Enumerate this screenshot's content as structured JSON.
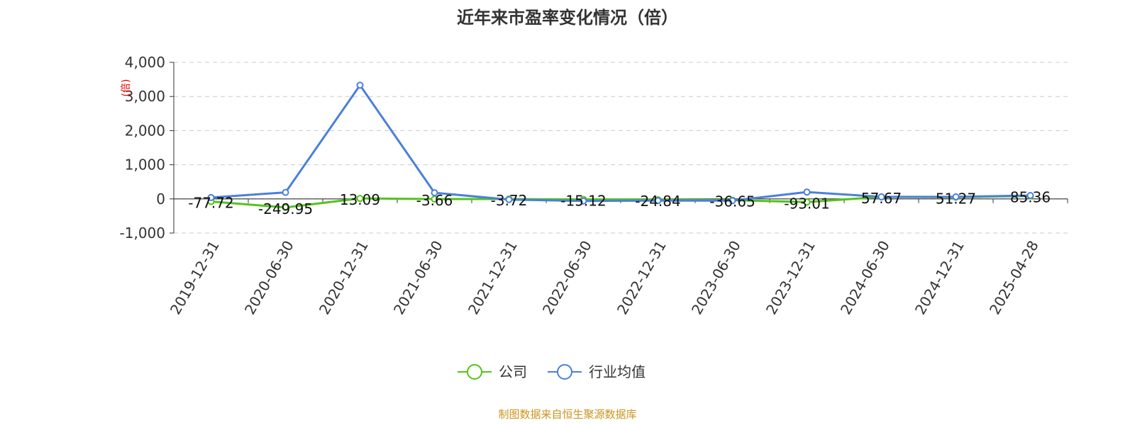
{
  "chart_data": {
    "type": "line",
    "title": "近年来市盈率变化情况（倍）",
    "unit_label": "(倍)",
    "categories": [
      "2019-12-31",
      "2020-06-30",
      "2020-12-31",
      "2021-06-30",
      "2021-12-31",
      "2022-06-30",
      "2022-12-31",
      "2023-06-30",
      "2023-12-31",
      "2024-06-30",
      "2024-12-31",
      "2025-04-28"
    ],
    "ylim": [
      -1000,
      4000
    ],
    "yticks": [
      -1000,
      0,
      1000,
      2000,
      3000,
      4000
    ],
    "ytick_labels": [
      "-1,000",
      "0",
      "1,000",
      "2,000",
      "3,000",
      "4,000"
    ],
    "grid": true,
    "legend_position": "bottom-center",
    "series": [
      {
        "name": "公司",
        "color": "#52c41a",
        "values": [
          -77.72,
          -249.95,
          13.09,
          -3.66,
          -3.72,
          -15.12,
          -24.84,
          -36.65,
          -93.01,
          57.67,
          51.27,
          85.36
        ],
        "labels": [
          "-77.72",
          "-249.95",
          "13.09",
          "-3.66",
          "-3.72",
          "-15.12",
          "-24.84",
          "-36.65",
          "-93.01",
          "57.67",
          "51.27",
          "85.36"
        ]
      },
      {
        "name": "行业均值",
        "color": "#4a80db",
        "values": [
          40,
          190,
          3330,
          180,
          -20,
          -60,
          -50,
          -50,
          200,
          60,
          60,
          100
        ]
      }
    ],
    "source": "制图数据来自恒生聚源数据库"
  }
}
